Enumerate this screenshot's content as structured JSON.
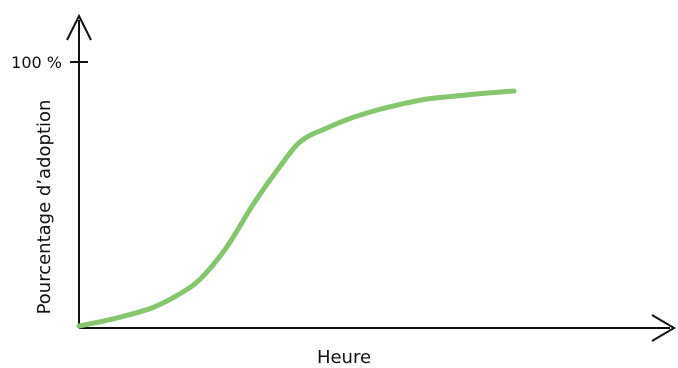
{
  "chart_data": {
    "type": "line",
    "title": "",
    "xlabel": "Heure",
    "ylabel": "Pourcentage d’adoption",
    "y_tick_label": "100 %",
    "ylim": [
      0,
      100
    ],
    "xlim": [
      0,
      100
    ],
    "grid": false,
    "series": [
      {
        "color": "#86c66f",
        "x": [
          0,
          6,
          11,
          17,
          23,
          28,
          34,
          40,
          46,
          51,
          57,
          63,
          69,
          74,
          80,
          86,
          92,
          100
        ],
        "y": [
          0,
          2,
          4,
          7,
          12,
          18,
          30,
          46,
          60,
          70,
          75,
          79,
          82,
          84,
          86,
          87,
          88,
          89
        ]
      }
    ]
  },
  "colors": {
    "axis": "#111111",
    "curve": "#86c66f"
  }
}
